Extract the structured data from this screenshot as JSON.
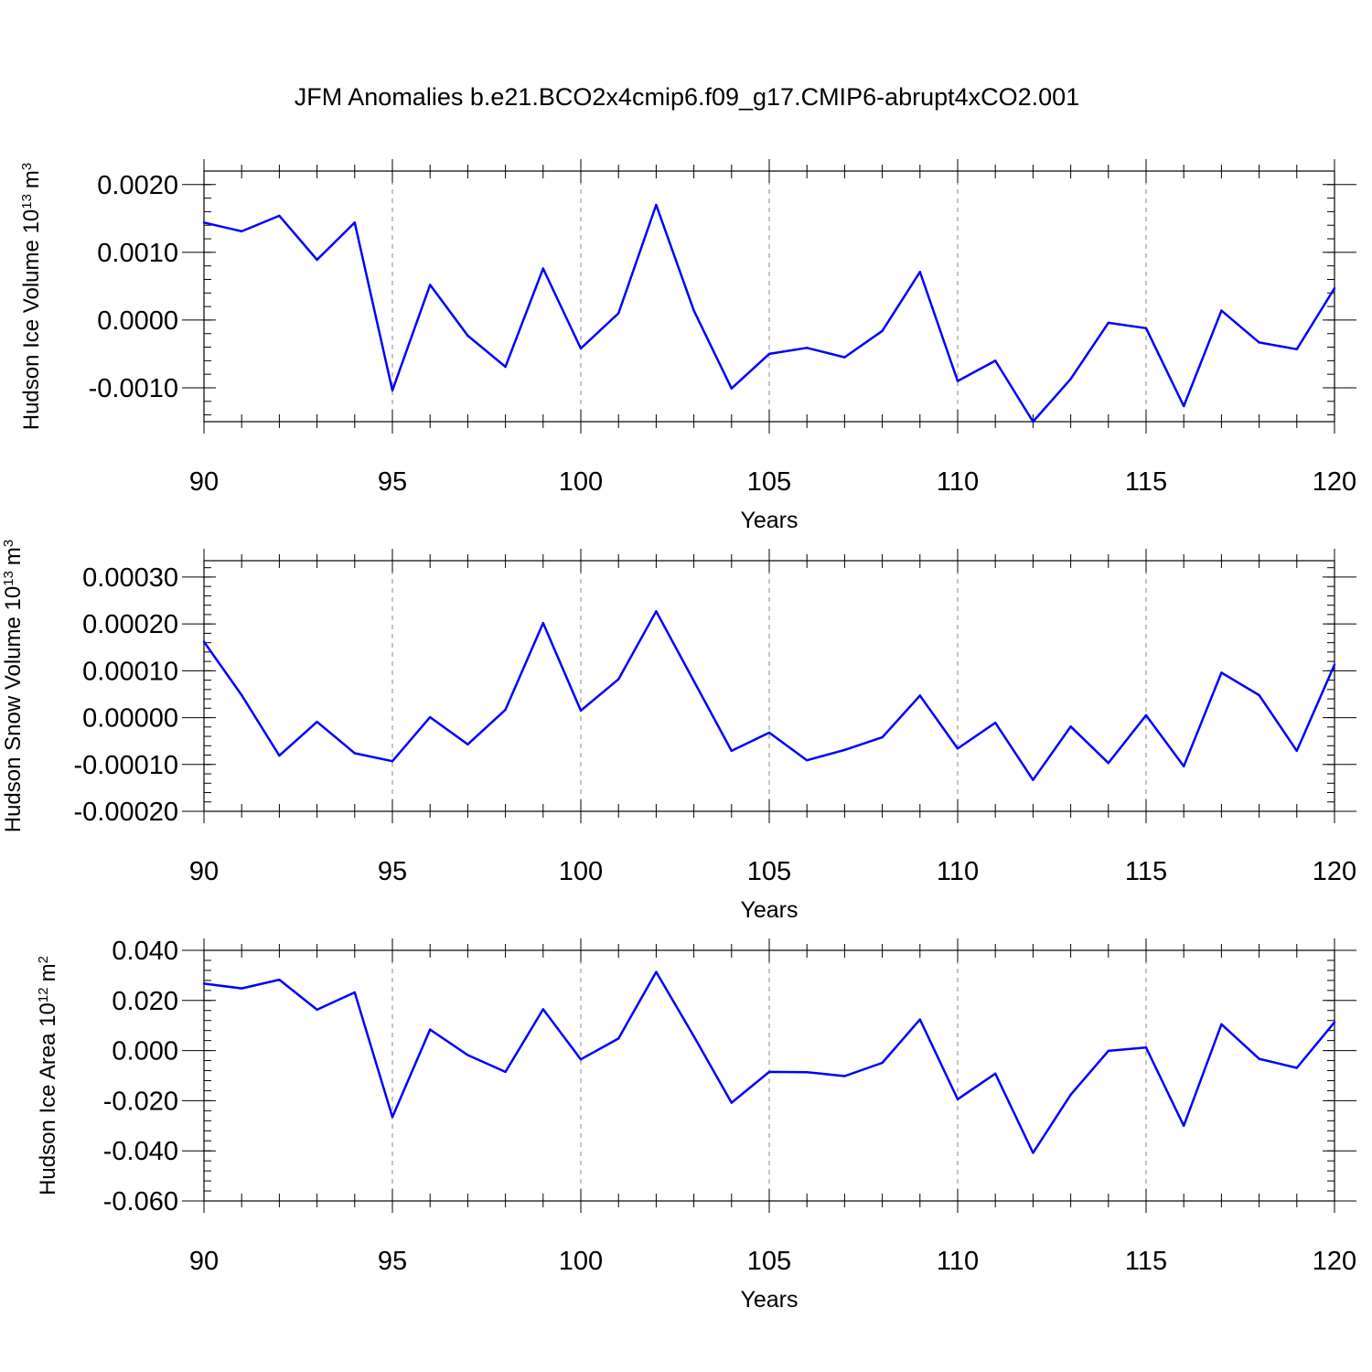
{
  "title": "JFM Anomalies b.e21.BCO2x4cmip6.f09_g17.CMIP6-abrupt4xCO2.001",
  "line_color": "#0000ff",
  "chart_data": [
    {
      "type": "line",
      "ylabel": "Hudson Ice Volume 10",
      "ylabel_exp": "13",
      "ylabel_unit": "m",
      "ylabel_unit_exp": "3",
      "xlabel": "Years",
      "xlim": [
        90,
        120
      ],
      "ylim": [
        -0.0015,
        0.0022
      ],
      "yticks": [
        -0.001,
        0.0,
        0.001,
        0.002
      ],
      "ytick_labels": [
        "-0.0010",
        "0.0000",
        "0.0010",
        "0.0020"
      ],
      "yminor_step": 0.0002,
      "xticks": [
        90,
        95,
        100,
        105,
        110,
        115,
        120
      ],
      "xtick_labels": [
        "90",
        "95",
        "100",
        "105",
        "110",
        "115",
        "120"
      ],
      "grid": "dashed vertical at major x ticks",
      "x": [
        90,
        91,
        92,
        93,
        94,
        95,
        96,
        97,
        98,
        99,
        100,
        101,
        102,
        103,
        104,
        105,
        106,
        107,
        108,
        109,
        110,
        111,
        112,
        113,
        114,
        115,
        116,
        117,
        118,
        119,
        120
      ],
      "values": [
        0.00144,
        0.00131,
        0.00154,
        0.00089,
        0.00144,
        -0.00104,
        0.00052,
        -0.00023,
        -0.00069,
        0.00076,
        -0.00042,
        0.0001,
        0.0017,
        0.00014,
        -0.00101,
        -0.0005,
        -0.00041,
        -0.00055,
        -0.00016,
        0.00071,
        -0.0009,
        -0.0006,
        -0.0015,
        -0.00087,
        -4e-05,
        -0.00012,
        -0.00127,
        0.00014,
        -0.00033,
        -0.00043,
        0.00047
      ]
    },
    {
      "type": "line",
      "ylabel": "Hudson Snow Volume 10",
      "ylabel_exp": "13",
      "ylabel_unit": "m",
      "ylabel_unit_exp": "3",
      "xlabel": "Years",
      "xlim": [
        90,
        120
      ],
      "ylim": [
        -0.0002,
        0.000335
      ],
      "yticks": [
        -0.0002,
        -0.0001,
        0.0,
        0.0001,
        0.0002,
        0.0003
      ],
      "ytick_labels": [
        "-0.00020",
        "-0.00010",
        "0.00000",
        "0.00010",
        "0.00020",
        "0.00030"
      ],
      "yminor_step": 2e-05,
      "xticks": [
        90,
        95,
        100,
        105,
        110,
        115,
        120
      ],
      "xtick_labels": [
        "90",
        "95",
        "100",
        "105",
        "110",
        "115",
        "120"
      ],
      "grid": "dashed vertical at major x ticks",
      "x": [
        90,
        91,
        92,
        93,
        94,
        95,
        96,
        97,
        98,
        99,
        100,
        101,
        102,
        103,
        104,
        105,
        106,
        107,
        108,
        109,
        110,
        111,
        112,
        113,
        114,
        115,
        116,
        117,
        118,
        119,
        120
      ],
      "values": [
        0.000162,
        4.8e-05,
        -8.1e-05,
        -9e-06,
        -7.6e-05,
        -9.3e-05,
        1e-06,
        -5.7e-05,
        1.7e-05,
        0.000202,
        1.5e-05,
        8.2e-05,
        0.000227,
        7.8e-05,
        -7.1e-05,
        -3.2e-05,
        -9.1e-05,
        -6.9e-05,
        -4.2e-05,
        4.7e-05,
        -6.6e-05,
        -1.1e-05,
        -0.000133,
        -1.9e-05,
        -9.7e-05,
        5e-06,
        -0.000104,
        9.6e-05,
        4.8e-05,
        -7.1e-05,
        0.000113
      ]
    },
    {
      "type": "line",
      "ylabel": "Hudson Ice Area 10",
      "ylabel_exp": "12",
      "ylabel_unit": "m",
      "ylabel_unit_exp": "2",
      "xlabel": "Years",
      "xlim": [
        90,
        120
      ],
      "ylim": [
        -0.06,
        0.04
      ],
      "yticks": [
        -0.06,
        -0.04,
        -0.02,
        0.0,
        0.02,
        0.04
      ],
      "ytick_labels": [
        "-0.060",
        "-0.040",
        "-0.020",
        "0.000",
        "0.020",
        "0.040"
      ],
      "yminor_step": 0.004,
      "xticks": [
        90,
        95,
        100,
        105,
        110,
        115,
        120
      ],
      "xtick_labels": [
        "90",
        "95",
        "100",
        "105",
        "110",
        "115",
        "120"
      ],
      "grid": "dashed vertical at major x ticks",
      "x": [
        90,
        91,
        92,
        93,
        94,
        95,
        96,
        97,
        98,
        99,
        100,
        101,
        102,
        103,
        104,
        105,
        106,
        107,
        108,
        109,
        110,
        111,
        112,
        113,
        114,
        115,
        116,
        117,
        118,
        119,
        120
      ],
      "values": [
        0.0267,
        0.0248,
        0.0283,
        0.0163,
        0.0232,
        -0.0265,
        0.0084,
        -0.0018,
        -0.0085,
        0.0165,
        -0.0035,
        0.0048,
        0.0314,
        0.0057,
        -0.0208,
        -0.0085,
        -0.0086,
        -0.0102,
        -0.0049,
        0.0124,
        -0.0194,
        -0.0092,
        -0.0408,
        -0.0176,
        -0.0001,
        0.0012,
        -0.03,
        0.0105,
        -0.0033,
        -0.0069,
        0.0113
      ]
    }
  ]
}
